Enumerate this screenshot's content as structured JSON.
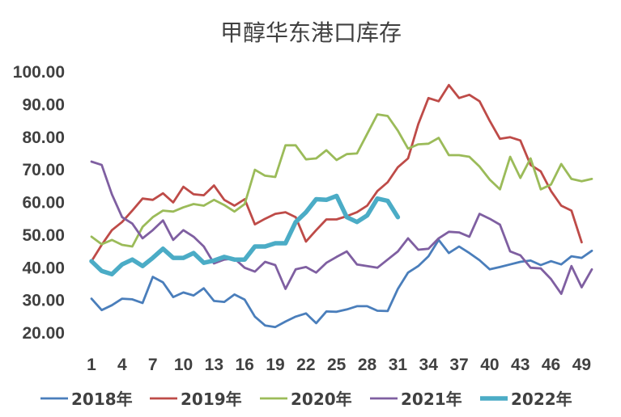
{
  "chart_data": {
    "type": "line",
    "title": "甲醇华东港口库存",
    "xlabel": "",
    "ylabel": "",
    "ylim": [
      20,
      100
    ],
    "xlim": [
      1,
      50
    ],
    "grid": false,
    "legend_position": "bottom",
    "y_ticks": [
      "100.00",
      "90.00",
      "80.00",
      "70.00",
      "60.00",
      "50.00",
      "40.00",
      "30.00",
      "20.00"
    ],
    "x_ticks": [
      "1",
      "4",
      "7",
      "10",
      "13",
      "16",
      "19",
      "22",
      "25",
      "28",
      "31",
      "34",
      "37",
      "40",
      "43",
      "46",
      "49"
    ],
    "series": [
      {
        "name": "2018年",
        "color": "#4a7ebb",
        "thick": false,
        "x": [
          1,
          2,
          3,
          4,
          5,
          6,
          7,
          8,
          9,
          10,
          11,
          12,
          13,
          14,
          15,
          16,
          17,
          18,
          19,
          20,
          21,
          22,
          23,
          24,
          25,
          26,
          27,
          28,
          29,
          30,
          31,
          32,
          33,
          34,
          35,
          36,
          37,
          38,
          39,
          40,
          41,
          42,
          43,
          44,
          45,
          46,
          47,
          48,
          49,
          50
        ],
        "values": [
          30.5,
          27,
          28.5,
          30.5,
          30.3,
          29.2,
          37.2,
          35.5,
          31,
          32.4,
          31.5,
          33.7,
          29.8,
          29.5,
          31.8,
          30.2,
          25,
          22.3,
          21.8,
          23.5,
          25,
          26,
          23,
          26.6,
          26.5,
          27.2,
          28.2,
          28.2,
          26.8,
          26.7,
          33.5,
          38.5,
          40.5,
          43.5,
          48.5,
          44.5,
          46.5,
          44.5,
          42.3,
          39.5,
          40.2,
          41,
          41.8,
          42.2,
          40.8,
          42,
          41,
          43.5,
          43,
          45.2
        ]
      },
      {
        "name": "2019年",
        "color": "#be4b48",
        "thick": false,
        "x": [
          1,
          2,
          3,
          4,
          5,
          6,
          7,
          8,
          9,
          10,
          11,
          12,
          13,
          14,
          15,
          16,
          17,
          18,
          19,
          20,
          21,
          22,
          23,
          24,
          25,
          26,
          27,
          28,
          29,
          30,
          31,
          32,
          33,
          34,
          35,
          36,
          37,
          38,
          39,
          40,
          41,
          42,
          43,
          44,
          45,
          46,
          47,
          48,
          49
        ],
        "values": [
          42,
          47,
          51.5,
          54,
          57.5,
          61.2,
          60.8,
          62.8,
          60,
          64.8,
          62.5,
          62.2,
          65.2,
          60.8,
          59,
          61,
          53.3,
          55,
          56.5,
          57,
          55.5,
          48,
          51.5,
          54.8,
          54.8,
          55.8,
          57,
          59,
          63.5,
          66.2,
          70.8,
          73.5,
          84,
          92,
          91,
          96,
          92,
          93,
          91,
          85,
          79.5,
          80,
          79,
          71.5,
          69.5,
          63.5,
          59,
          57.5,
          47.8
        ]
      },
      {
        "name": "2020年",
        "color": "#9bbb59",
        "thick": false,
        "x": [
          1,
          2,
          3,
          4,
          5,
          6,
          7,
          8,
          9,
          10,
          11,
          12,
          13,
          14,
          15,
          16,
          17,
          18,
          19,
          20,
          21,
          22,
          23,
          24,
          25,
          26,
          27,
          28,
          29,
          30,
          31,
          32,
          33,
          34,
          35,
          36,
          37,
          38,
          39,
          40,
          41,
          42,
          43,
          44,
          45,
          46,
          47,
          48,
          49,
          50
        ],
        "values": [
          49.5,
          47.2,
          48.5,
          47,
          46.5,
          52.5,
          55.5,
          57.5,
          57.2,
          58.5,
          59.5,
          59,
          60.8,
          59.2,
          57.2,
          59.5,
          70,
          68.2,
          67.8,
          77.5,
          77.5,
          73.2,
          73.5,
          76,
          73,
          74.8,
          75,
          81,
          87,
          86.5,
          82,
          76.5,
          77.8,
          78,
          79.8,
          74.5,
          74.5,
          74,
          71,
          67,
          64,
          74,
          67.5,
          73.5,
          64,
          65.5,
          71.8,
          67.2,
          66.5,
          67.2
        ]
      },
      {
        "name": "2021年",
        "color": "#7f5fa1",
        "thick": false,
        "x": [
          1,
          2,
          3,
          4,
          5,
          6,
          7,
          8,
          9,
          10,
          11,
          12,
          13,
          14,
          15,
          16,
          17,
          18,
          19,
          20,
          21,
          22,
          23,
          24,
          25,
          26,
          27,
          28,
          29,
          30,
          31,
          32,
          33,
          34,
          35,
          36,
          37,
          38,
          39,
          40,
          41,
          42,
          43,
          44,
          45,
          46,
          47,
          48,
          49,
          50
        ],
        "values": [
          72.5,
          71.5,
          62.5,
          55.5,
          53.5,
          49,
          51.5,
          54.5,
          48.5,
          51.5,
          49.5,
          46.5,
          41.3,
          42.5,
          42.8,
          40,
          38.8,
          41.8,
          40.8,
          33.5,
          39.5,
          40.2,
          38.5,
          41.5,
          43.3,
          45,
          41,
          40.5,
          40,
          42.5,
          45,
          49,
          45.5,
          45.8,
          49,
          51,
          50.8,
          49.5,
          56.5,
          55,
          53.2,
          45,
          43.8,
          40,
          39.8,
          36.5,
          32,
          40.5,
          34,
          39.5
        ]
      },
      {
        "name": "2022年",
        "color": "#4bacc6",
        "thick": true,
        "x": [
          1,
          2,
          3,
          4,
          5,
          6,
          7,
          8,
          9,
          10,
          11,
          12,
          13,
          14,
          15,
          16,
          17,
          18,
          19,
          20,
          21,
          22,
          23,
          24,
          25,
          26,
          27,
          28,
          29,
          30,
          31
        ],
        "values": [
          42,
          39,
          38,
          41,
          42.5,
          40.5,
          43,
          45.8,
          43,
          43,
          44.5,
          41.5,
          42.2,
          43.3,
          42.5,
          42.5,
          46.5,
          46.5,
          47.5,
          47.5,
          54,
          57,
          61,
          60.8,
          62,
          55.5,
          54,
          56,
          61.2,
          60.5,
          55.5
        ]
      }
    ]
  }
}
